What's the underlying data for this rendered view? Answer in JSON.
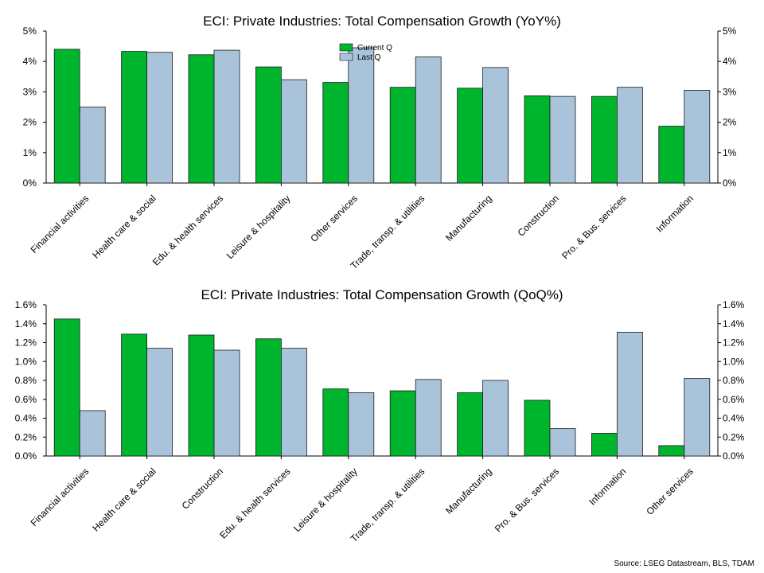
{
  "colors": {
    "current": "#00b52e",
    "last": "#a9c4da",
    "axis": "#000000",
    "edge": "#1a1a1a"
  },
  "chart_data": [
    {
      "type": "bar",
      "title": "ECI: Private Industries: Total Compensation Growth (YoY%)",
      "categories": [
        "Financial activities",
        "Health care & social",
        "Edu. & health services",
        "Leisure & hospitality",
        "Other services",
        "Trade, transp. & utilities",
        "Manufacturing",
        "Construction",
        "Pro. & Bus. services",
        "Information"
      ],
      "series": [
        {
          "name": "Current Q",
          "values": [
            4.4,
            4.33,
            4.22,
            3.82,
            3.31,
            3.15,
            3.12,
            2.87,
            2.85,
            1.87
          ]
        },
        {
          "name": "Last Q",
          "values": [
            2.5,
            4.3,
            4.37,
            3.4,
            4.45,
            4.15,
            3.8,
            2.85,
            3.15,
            3.05
          ]
        }
      ],
      "ylim": [
        0,
        5
      ],
      "yticks": [
        "0%",
        "1%",
        "2%",
        "3%",
        "4%",
        "5%"
      ],
      "legend": "top-center"
    },
    {
      "type": "bar",
      "title": "ECI: Private Industries: Total Compensation Growth (QoQ%)",
      "categories": [
        "Financial activities",
        "Health care & social",
        "Construction",
        "Edu. & health services",
        "Leisure & hospitality",
        "Trade, transp. & utilities",
        "Manufacturing",
        "Pro. & Bus. services",
        "Information",
        "Other services"
      ],
      "series": [
        {
          "name": "Current Q",
          "values": [
            1.45,
            1.29,
            1.28,
            1.24,
            0.71,
            0.69,
            0.67,
            0.59,
            0.24,
            0.11
          ]
        },
        {
          "name": "Last Q",
          "values": [
            0.48,
            1.14,
            1.12,
            1.14,
            0.67,
            0.81,
            0.8,
            0.29,
            1.31,
            0.82
          ]
        }
      ],
      "ylim": [
        0,
        1.6
      ],
      "yticks": [
        "0.0%",
        "0.2%",
        "0.4%",
        "0.6%",
        "0.8%",
        "1.0%",
        "1.2%",
        "1.4%",
        "1.6%"
      ]
    }
  ],
  "source": "Source: LSEG Datastream, BLS, TDAM"
}
